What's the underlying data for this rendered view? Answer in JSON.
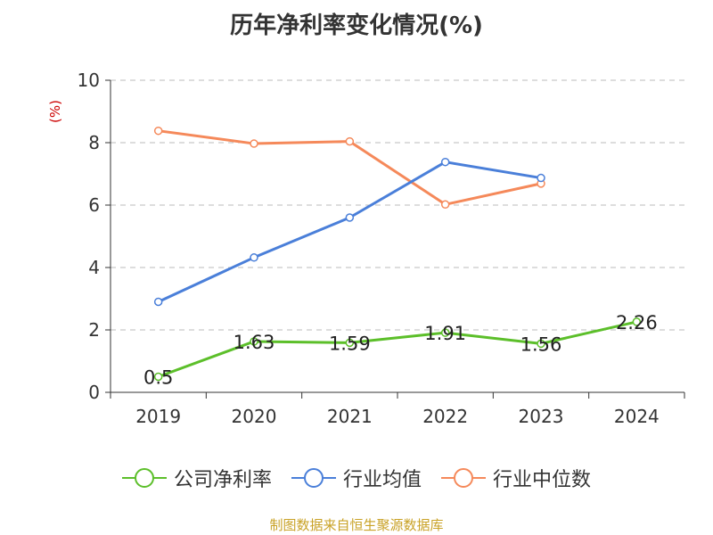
{
  "title": "历年净利率变化情况(%)",
  "source": "制图数据来自恒生聚源数据库",
  "colors": {
    "公司净利率": "#5cbf2a",
    "行业均值": "#4a7fd9",
    "行业中位数": "#f5895a",
    "unit_label": "#cc0000",
    "source": "#c9a227"
  },
  "chart_data": {
    "type": "line",
    "title": "历年净利率变化情况(%)",
    "ylabel": "(%)",
    "xlabel": "",
    "categories": [
      "2019",
      "2020",
      "2021",
      "2022",
      "2023",
      "2024"
    ],
    "ylim": [
      0,
      10
    ],
    "yticks": [
      0,
      2,
      4,
      6,
      8,
      10
    ],
    "grid": true,
    "legend_position": "bottom",
    "series": [
      {
        "name": "公司净利率",
        "values": [
          0.5,
          1.63,
          1.59,
          1.91,
          1.56,
          2.26
        ],
        "show_labels": true
      },
      {
        "name": "行业均值",
        "values": [
          2.9,
          4.32,
          5.6,
          7.38,
          6.87,
          null
        ],
        "show_labels": false
      },
      {
        "name": "行业中位数",
        "values": [
          8.38,
          7.97,
          8.04,
          6.02,
          6.69,
          null
        ],
        "show_labels": false
      }
    ]
  }
}
